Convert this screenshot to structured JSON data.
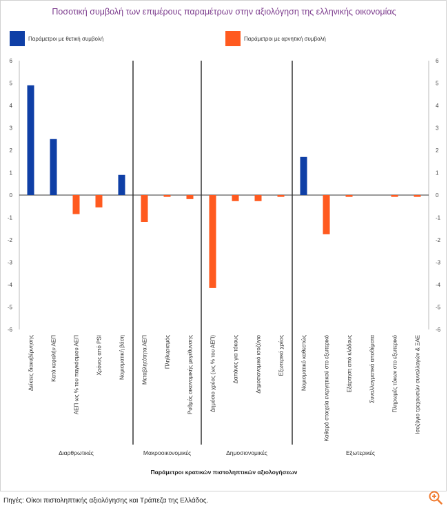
{
  "chart_data": {
    "type": "bar",
    "title": "Ποσοτική συμβολή των επιμέρους παραμέτρων στην αξιολόγηση της ελληνικής οικονομίας",
    "xlabel": "Παράμετροι κρατικών πιστοληπτικών αξιολογήσεων",
    "ylabel": "",
    "ylim": [
      -6,
      6
    ],
    "yticks": [
      6,
      5,
      4,
      3,
      2,
      1,
      0,
      -1,
      -2,
      -3,
      -4,
      -5,
      -6
    ],
    "legend": [
      {
        "name": "Παράμετροι με θετική συμβολή",
        "color": "#0f3fa6"
      },
      {
        "name": "Παράμετροι με αρνητική συμβολή",
        "color": "#ff5a1f"
      }
    ],
    "categories": [
      "Δείκτες διακυβέρνησης",
      "Κατά κεφαλήν ΑΕΠ",
      "ΑΕΠ ως % του παγκόσμιου ΑΕΠ",
      "Χρόνος από PSI",
      "Νομισματική βάση",
      "Μεταβλητότητα ΑΕΠ",
      "Πληθωρισμός",
      "Ρυθμός οικονομικής μεγέθυνσης",
      "Δημόσιο χρέος (ως % του ΑΕΠ)",
      "Δαπάνες για τόκους",
      "Δημοσιονομικό ισοζύγιο",
      "Εξωτερικό χρέος",
      "Νομισματικό καθεστώς",
      "Καθαρά στοιχεία ενεργητικού στο εξωτερικό",
      "Εξάρτηση από κλάδους",
      "Συναλλαγματικά αποθέματα",
      "Πληρωμές τόκων στο εξωτερικό",
      "Ισοζύγιο τρεχουσών συναλλαγών & ΞΑΕ"
    ],
    "values": [
      4.9,
      2.5,
      -0.85,
      -0.55,
      0.9,
      -1.2,
      -0.08,
      -0.18,
      -4.15,
      -0.27,
      -0.27,
      -0.08,
      1.7,
      -1.75,
      -0.08,
      0,
      -0.08,
      -0.08
    ],
    "groups": [
      {
        "label": "Διαρθρωτικές",
        "start": 0,
        "end": 4
      },
      {
        "label": "Μακροοικονομικές",
        "start": 5,
        "end": 7
      },
      {
        "label": "Δημοσιονομικές",
        "start": 8,
        "end": 11
      },
      {
        "label": "Εξωτερικές",
        "start": 12,
        "end": 17
      }
    ],
    "grid": false
  },
  "source": "Πηγές: Οίκοι πιστοληπτικής αξιολόγησης και Τράπεζα της Ελλάδος.",
  "zoom_icon": "zoom-in-icon",
  "colors": {
    "positive": "#0f3fa6",
    "negative": "#ff5a1f",
    "title": "#7b3a8c"
  }
}
